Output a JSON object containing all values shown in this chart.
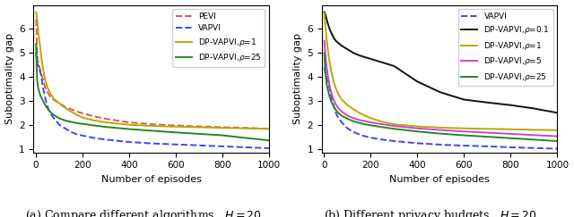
{
  "figsize": [
    6.4,
    2.43
  ],
  "dpi": 100,
  "x_episodes": [
    1,
    3,
    5,
    8,
    10,
    15,
    20,
    25,
    30,
    40,
    50,
    60,
    75,
    100,
    125,
    150,
    175,
    200,
    250,
    300,
    400,
    500,
    600,
    700,
    800,
    900,
    1000
  ],
  "left": {
    "caption": "(a) Compare different algorithms,  $H = 20$",
    "xlabel": "Number of episodes",
    "ylabel": "Suboptimality gap",
    "ylim": [
      0.85,
      7.0
    ],
    "yticks": [
      1,
      2,
      3,
      4,
      5,
      6
    ],
    "xlim": [
      -10,
      1000
    ],
    "PEVI": {
      "color": "#e05555",
      "linestyle": "--",
      "linewidth": 1.4,
      "y": [
        6.4,
        5.8,
        5.0,
        4.7,
        4.6,
        4.4,
        4.25,
        4.05,
        3.9,
        3.55,
        3.35,
        3.2,
        3.05,
        2.9,
        2.75,
        2.65,
        2.55,
        2.48,
        2.35,
        2.25,
        2.1,
        2.02,
        1.97,
        1.93,
        1.9,
        1.87,
        1.83
      ]
    },
    "VAPVI": {
      "color": "#4444ee",
      "linestyle": "--",
      "linewidth": 1.4,
      "y": [
        5.05,
        4.7,
        4.6,
        4.5,
        4.45,
        4.3,
        4.15,
        3.9,
        3.55,
        3.1,
        2.75,
        2.5,
        2.3,
        2.0,
        1.85,
        1.7,
        1.6,
        1.55,
        1.45,
        1.38,
        1.28,
        1.22,
        1.18,
        1.14,
        1.1,
        1.06,
        1.02
      ]
    },
    "DP_VAPVI_rho1": {
      "color": "#b8a800",
      "linestyle": "-",
      "linewidth": 1.4,
      "y": [
        6.7,
        6.55,
        6.4,
        6.1,
        5.85,
        5.5,
        5.1,
        4.7,
        4.35,
        3.85,
        3.55,
        3.35,
        3.1,
        2.9,
        2.7,
        2.55,
        2.42,
        2.3,
        2.18,
        2.1,
        2.0,
        1.95,
        1.92,
        1.9,
        1.87,
        1.85,
        1.83
      ]
    },
    "DP_VAPVI_rho25": {
      "color": "#228822",
      "linestyle": "-",
      "linewidth": 1.4,
      "y": [
        5.38,
        4.5,
        3.9,
        3.65,
        3.52,
        3.35,
        3.2,
        3.1,
        3.0,
        2.82,
        2.68,
        2.55,
        2.42,
        2.27,
        2.18,
        2.12,
        2.07,
        2.04,
        1.97,
        1.91,
        1.82,
        1.75,
        1.68,
        1.62,
        1.56,
        1.45,
        1.35
      ]
    }
  },
  "right": {
    "caption": "(b) Different privacy budgets,  $H = 20$",
    "xlabel": "Number of episodes",
    "ylabel": "Suboptimality gap",
    "ylim": [
      0.85,
      7.0
    ],
    "yticks": [
      1,
      2,
      3,
      4,
      5,
      6
    ],
    "xlim": [
      -10,
      1000
    ],
    "VAPVI": {
      "color": "#4444ee",
      "linestyle": "--",
      "linewidth": 1.4,
      "y": [
        4.4,
        4.25,
        4.15,
        4.05,
        3.95,
        3.8,
        3.65,
        3.45,
        3.2,
        2.8,
        2.5,
        2.3,
        2.1,
        1.85,
        1.7,
        1.6,
        1.52,
        1.46,
        1.38,
        1.32,
        1.23,
        1.17,
        1.13,
        1.1,
        1.06,
        1.03,
        1.0
      ]
    },
    "DP_VAPVI_rho01": {
      "color": "#111111",
      "linestyle": "-",
      "linewidth": 1.4,
      "y": [
        6.7,
        6.65,
        6.6,
        6.5,
        6.42,
        6.25,
        6.1,
        5.95,
        5.85,
        5.65,
        5.5,
        5.42,
        5.3,
        5.15,
        5.0,
        4.9,
        4.82,
        4.75,
        4.6,
        4.45,
        3.8,
        3.35,
        3.05,
        2.93,
        2.82,
        2.68,
        2.5
      ]
    },
    "DP_VAPVI_rho1": {
      "color": "#b8a800",
      "linestyle": "-",
      "linewidth": 1.4,
      "y": [
        6.65,
        6.4,
        6.15,
        5.82,
        5.6,
        5.2,
        4.82,
        4.52,
        4.25,
        3.82,
        3.52,
        3.3,
        3.05,
        2.82,
        2.65,
        2.5,
        2.38,
        2.28,
        2.12,
        2.02,
        1.93,
        1.88,
        1.85,
        1.83,
        1.81,
        1.79,
        1.77
      ]
    },
    "DP_VAPVI_rho5": {
      "color": "#cc44cc",
      "linestyle": "-",
      "linewidth": 1.4,
      "y": [
        5.5,
        5.2,
        4.95,
        4.65,
        4.45,
        4.1,
        3.82,
        3.55,
        3.35,
        3.05,
        2.85,
        2.7,
        2.55,
        2.38,
        2.28,
        2.2,
        2.15,
        2.1,
        2.02,
        1.95,
        1.85,
        1.78,
        1.72,
        1.67,
        1.62,
        1.57,
        1.52
      ]
    },
    "DP_VAPVI_rho25": {
      "color": "#228822",
      "linestyle": "-",
      "linewidth": 1.4,
      "y": [
        5.0,
        4.55,
        4.25,
        3.92,
        3.75,
        3.5,
        3.3,
        3.12,
        2.98,
        2.78,
        2.62,
        2.5,
        2.38,
        2.25,
        2.15,
        2.08,
        2.02,
        1.98,
        1.9,
        1.83,
        1.72,
        1.63,
        1.56,
        1.5,
        1.44,
        1.38,
        1.32
      ]
    }
  }
}
